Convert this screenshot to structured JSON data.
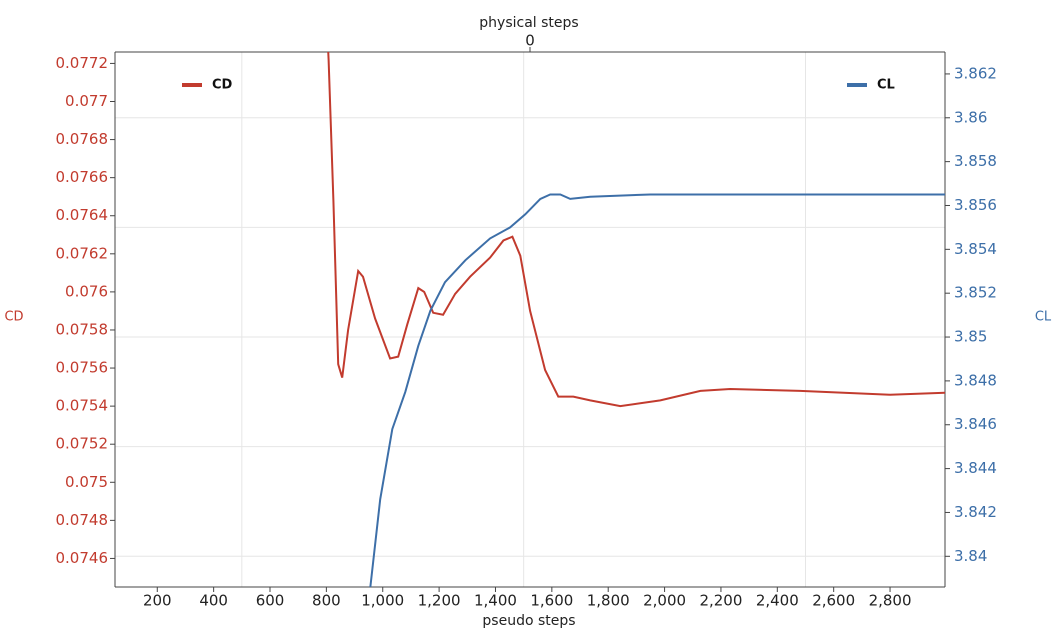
{
  "chart_data": {
    "type": "line",
    "x_label": "pseudo steps",
    "x2_label": "physical steps",
    "y_label": "CD",
    "y2_label": "CL",
    "xlim": [
      50,
      2995
    ],
    "xticks": [
      200,
      400,
      600,
      800,
      {
        "value": 1000,
        "label": "1,000"
      },
      {
        "value": 1200,
        "label": "1,200"
      },
      {
        "value": 1400,
        "label": "1,400"
      },
      {
        "value": 1600,
        "label": "1,600"
      },
      {
        "value": 1800,
        "label": "1,800"
      },
      {
        "value": 2000,
        "label": "2,000"
      },
      {
        "value": 2200,
        "label": "2,200"
      },
      {
        "value": 2400,
        "label": "2,400"
      },
      {
        "value": 2600,
        "label": "2,600"
      },
      {
        "value": 2800,
        "label": "2,800"
      }
    ],
    "x2lim": [
      -1,
      1
    ],
    "x2ticks": [
      0
    ],
    "ylim": [
      0.07445,
      0.07726
    ],
    "yticks": [
      0.0746,
      0.0748,
      0.075,
      0.0752,
      0.0754,
      0.0756,
      0.0758,
      0.076,
      0.0762,
      0.0764,
      0.0766,
      0.0768,
      0.077,
      0.0772
    ],
    "y2lim": [
      3.8386,
      3.863
    ],
    "y2ticks": [
      3.84,
      3.842,
      3.844,
      3.846,
      3.848,
      3.85,
      3.852,
      3.854,
      3.856,
      3.858,
      3.86,
      3.862
    ],
    "x_grid_lines": [
      500,
      1500,
      2500
    ],
    "y2_grid_lines": [
      3.84,
      3.845,
      3.85,
      3.855,
      3.86
    ],
    "series": [
      {
        "name": "CD",
        "color": "#c23b2e",
        "axis": "y",
        "legend_corner": "top-left",
        "x": [
          796,
          808,
          825,
          842,
          856,
          877,
          913,
          930,
          973,
          1026,
          1055,
          1087,
          1126,
          1147,
          1179,
          1214,
          1257,
          1310,
          1381,
          1428,
          1460,
          1488,
          1523,
          1576,
          1623,
          1676,
          1736,
          1843,
          1985,
          2127,
          2233,
          2481,
          2800,
          2995
        ],
        "values": [
          0.0776,
          0.07722,
          0.07648,
          0.07562,
          0.07555,
          0.0758,
          0.07611,
          0.07608,
          0.07586,
          0.07565,
          0.07566,
          0.07583,
          0.07602,
          0.076,
          0.07589,
          0.07588,
          0.07599,
          0.07608,
          0.07618,
          0.07627,
          0.07629,
          0.07619,
          0.0759,
          0.07559,
          0.07545,
          0.07545,
          0.07543,
          0.0754,
          0.07543,
          0.07548,
          0.07549,
          0.07548,
          0.07546,
          0.07547
        ]
      },
      {
        "name": "CL",
        "color": "#3d6fa8",
        "axis": "y2",
        "legend_corner": "top-right",
        "x": [
          927,
          955,
          991,
          1034,
          1080,
          1126,
          1169,
          1221,
          1293,
          1381,
          1452,
          1506,
          1559,
          1594,
          1630,
          1665,
          1736,
          1949,
          2481,
          2995
        ],
        "values": [
          3.8362,
          3.8385,
          3.8426,
          3.8458,
          3.8475,
          3.8496,
          3.8512,
          3.8525,
          3.8535,
          3.8545,
          3.855,
          3.8556,
          3.8563,
          3.8565,
          3.8565,
          3.8563,
          3.8564,
          3.8565,
          3.8565,
          3.8565
        ]
      }
    ]
  }
}
